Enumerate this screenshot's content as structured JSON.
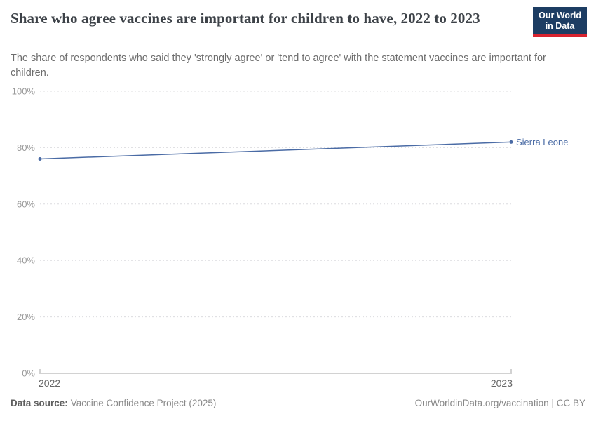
{
  "header": {
    "title": "Share who agree vaccines are important for children to have, 2022 to 2023",
    "subtitle": "The share of respondents who said they 'strongly agree' or 'tend to agree' with the statement vaccines are important for children.",
    "logo": {
      "line1": "Our World",
      "line2": "in Data",
      "bg_color": "#1d3d63",
      "stripe_color": "#d8232f"
    }
  },
  "chart_data": {
    "type": "line",
    "x": [
      2022,
      2023
    ],
    "series": [
      {
        "name": "Sierra Leone",
        "values": [
          76,
          82
        ],
        "color": "#4a6ba5"
      }
    ],
    "title": "Share who agree vaccines are important for children to have, 2022 to 2023",
    "xlabel": "",
    "ylabel": "",
    "ylim": [
      0,
      100
    ],
    "yticks": [
      0,
      20,
      40,
      60,
      80,
      100
    ],
    "ytick_suffix": "%",
    "xtick_labels": [
      "2022",
      "2023"
    ],
    "grid": true,
    "grid_color": "#dcdcdf",
    "axis_color": "#a5a5a5",
    "tick_label_color": "#9a9a9a",
    "x_label_color": "#666666",
    "legend_position": "end-of-line-label"
  },
  "footer": {
    "datasource_label": "Data source:",
    "datasource_value": "Vaccine Confidence Project (2025)",
    "link": "OurWorldinData.org/vaccination",
    "divider": "|",
    "license": "CC BY"
  }
}
